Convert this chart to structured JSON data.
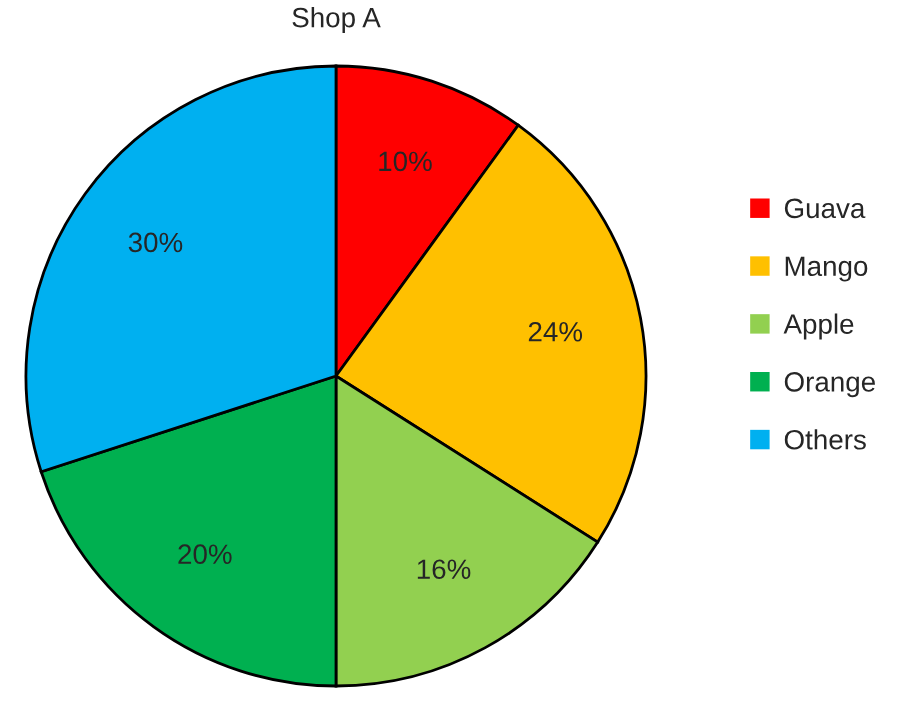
{
  "chart_data": {
    "type": "pie",
    "title": "Shop A",
    "categories": [
      "Guava",
      "Mango",
      "Apple",
      "Orange",
      "Others"
    ],
    "values": [
      10,
      24,
      16,
      20,
      30
    ],
    "colors": [
      "#ff0000",
      "#ffc000",
      "#92d050",
      "#00b050",
      "#00b0f0"
    ],
    "value_labels": [
      "10%",
      "24%",
      "16%",
      "20%",
      "30%"
    ],
    "legend": "right"
  }
}
